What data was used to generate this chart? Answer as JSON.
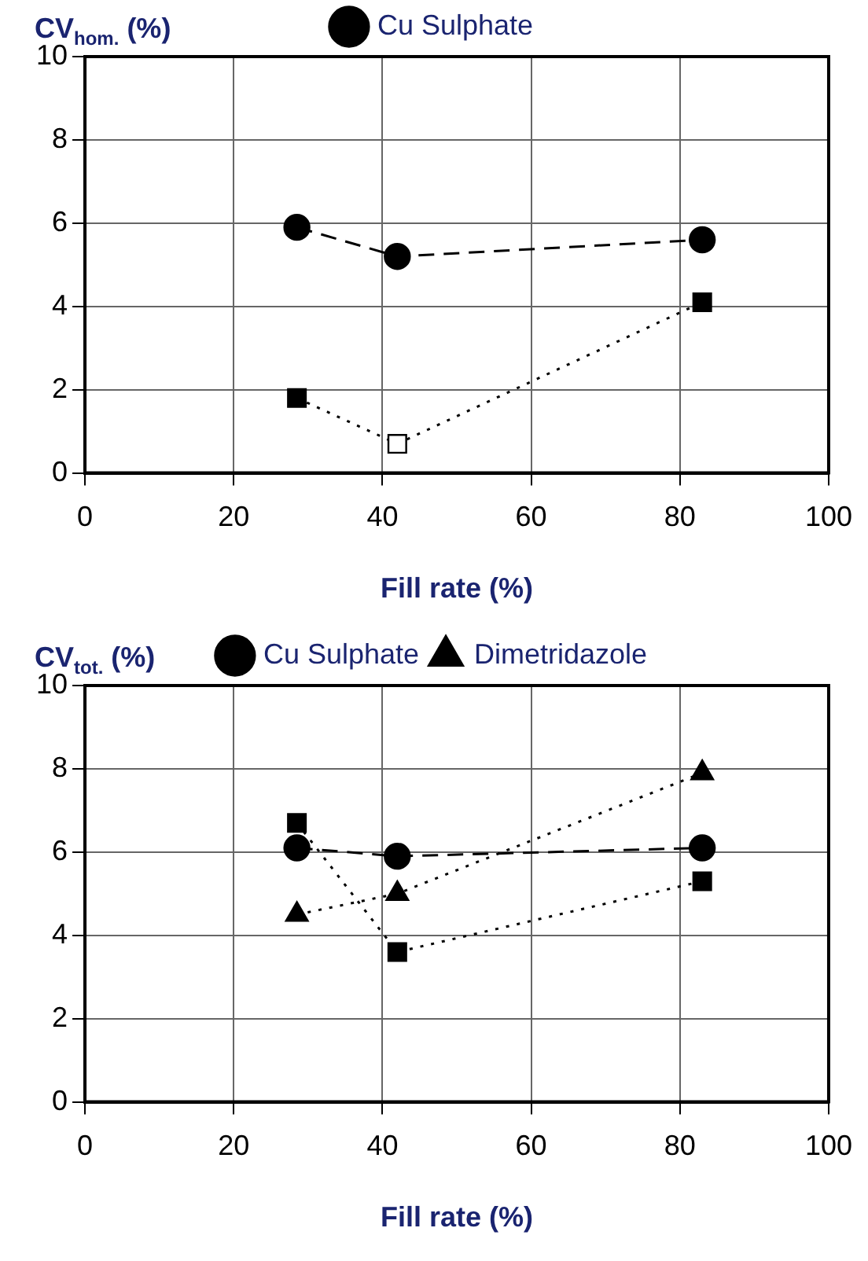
{
  "chart_data": [
    {
      "type": "line",
      "ylabel": "CV$_{hom.}$ (%)",
      "xlabel": "Fill rate (%)",
      "xlim": [
        0,
        100
      ],
      "xticks": [
        0,
        20,
        40,
        60,
        80,
        100
      ],
      "ylim": [
        0,
        10
      ],
      "yticks": [
        0,
        2,
        4,
        6,
        8,
        10
      ],
      "grid": true,
      "legend": "top",
      "x": [
        28.5,
        42,
        83
      ],
      "series": [
        {
          "color": "#000000",
          "colors": [
            "#000000",
            "#ffffff",
            "#000000"
          ],
          "marker": "square",
          "line_style": "dotted",
          "values": [
            1.8,
            0.7,
            4.1
          ]
        },
        {
          "name": "Cu Sulphate",
          "color": "#000000",
          "marker": "circle",
          "line_style": "dashed",
          "values": [
            5.9,
            5.2,
            5.6
          ]
        }
      ]
    },
    {
      "type": "line",
      "ylabel": "CV$_{tot.}$ (%)",
      "xlabel": "Fill rate (%)",
      "xlim": [
        0,
        100
      ],
      "xticks": [
        0,
        20,
        40,
        60,
        80,
        100
      ],
      "ylim": [
        0,
        10
      ],
      "yticks": [
        0,
        2,
        4,
        6,
        8,
        10
      ],
      "grid": true,
      "legend": "top",
      "x": [
        28.5,
        42,
        83
      ],
      "series": [
        {
          "color": "#000000",
          "marker": "square",
          "line_style": "dotted",
          "values": [
            6.7,
            3.6,
            5.3
          ]
        },
        {
          "name": "Cu Sulphate",
          "color": "#000000",
          "marker": "circle",
          "line_style": "dashed",
          "values": [
            6.1,
            5.9,
            6.1
          ]
        },
        {
          "name": "Dimetridazole",
          "color": "#000000",
          "marker": "triangle",
          "line_style": "dotted",
          "values": [
            4.5,
            5.0,
            7.9
          ]
        }
      ]
    }
  ]
}
